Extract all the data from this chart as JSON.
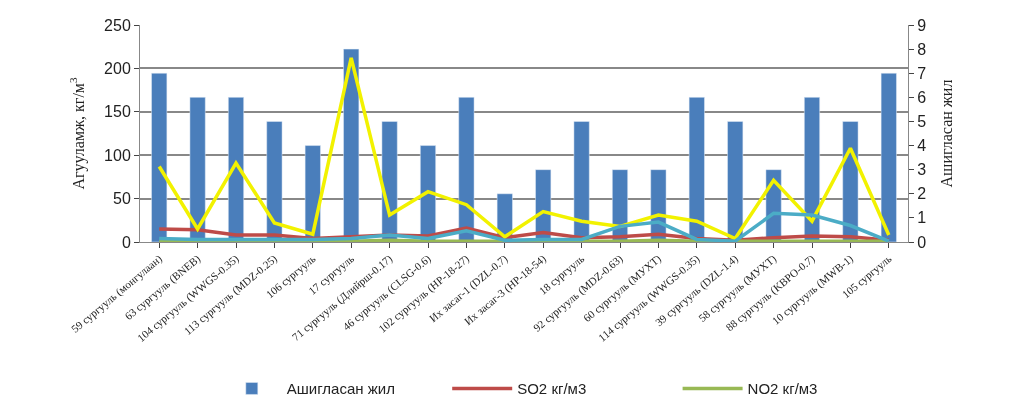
{
  "chart_data": {
    "type": "line",
    "ylabel": "Агууламж, кг/м$^{3}$",
    "y2label": "Ашигласан жил",
    "categories": [
      "59 сургууль (монгулаан)",
      "63 сургууль (BNEB)",
      "104 сургууль (WWGS-0.35)",
      "113 сургууль (MDZ-0.25)",
      "106 сургууль",
      "17 сургууль",
      "71 сургууль (Длийрш-0.17)",
      "46 сургууль (CLSG-0.6)",
      "102 сургууль (HP-18-27)",
      "Их засаг-1 (DZL-0.7)",
      "Их засаг-3 (HP-18-54)",
      "18 сургууль",
      "92 сургууль (MDZ-0.63)",
      "60 сургууль (МУХТ)",
      "114 сургууль (WWGS-0.35)",
      "39 сургууль (DZL-1.4)",
      "58 сургууль (МУХТ)",
      "88 сургууль (KBPO-0.7)",
      "10 сургууль (MWB-1)",
      "105 сургууль"
    ],
    "series": [
      {
        "name": "Ашигласан жил",
        "type": "bar",
        "axis": "y2",
        "color": "#4a7ebb",
        "values": [
          7,
          6,
          6,
          5,
          4,
          8,
          5,
          4,
          6,
          2,
          3,
          5,
          3,
          3,
          6,
          5,
          3,
          6,
          5,
          7
        ]
      },
      {
        "name": "SO2 кг/м3",
        "color": "#be4b48",
        "values": [
          15,
          14,
          8,
          8,
          4,
          6,
          8,
          7,
          16,
          5,
          11,
          5,
          6,
          9,
          4,
          2,
          5,
          7,
          6,
          2
        ]
      },
      {
        "name": "NO2 кг/м3",
        "color": "#98b954",
        "values": [
          1,
          1,
          1,
          1,
          1,
          1,
          2,
          1,
          1,
          1,
          1,
          1,
          1,
          2,
          1,
          1,
          1,
          1,
          1,
          1
        ]
      },
      {
        "color": "#f2f200",
        "values": [
          87,
          15,
          91,
          22,
          9,
          212,
          31,
          58,
          43,
          6,
          35,
          24,
          18,
          31,
          24,
          4,
          71,
          24,
          108,
          8
        ]
      },
      {
        "color": "#4bacc6",
        "values": [
          4,
          3,
          3,
          3,
          3,
          4,
          8,
          4,
          13,
          2,
          3,
          3,
          18,
          23,
          3,
          1,
          33,
          31,
          19,
          1
        ]
      }
    ],
    "ylim": [
      0,
      250
    ],
    "yticks": [
      0,
      50,
      100,
      150,
      200,
      250
    ],
    "y2lim": [
      0,
      9
    ],
    "y2ticks": [
      0,
      1,
      2,
      3,
      4,
      5,
      6,
      7,
      8,
      9
    ],
    "grid": "y",
    "legend": "bottom",
    "marker": "none",
    "line_style": "solid"
  }
}
